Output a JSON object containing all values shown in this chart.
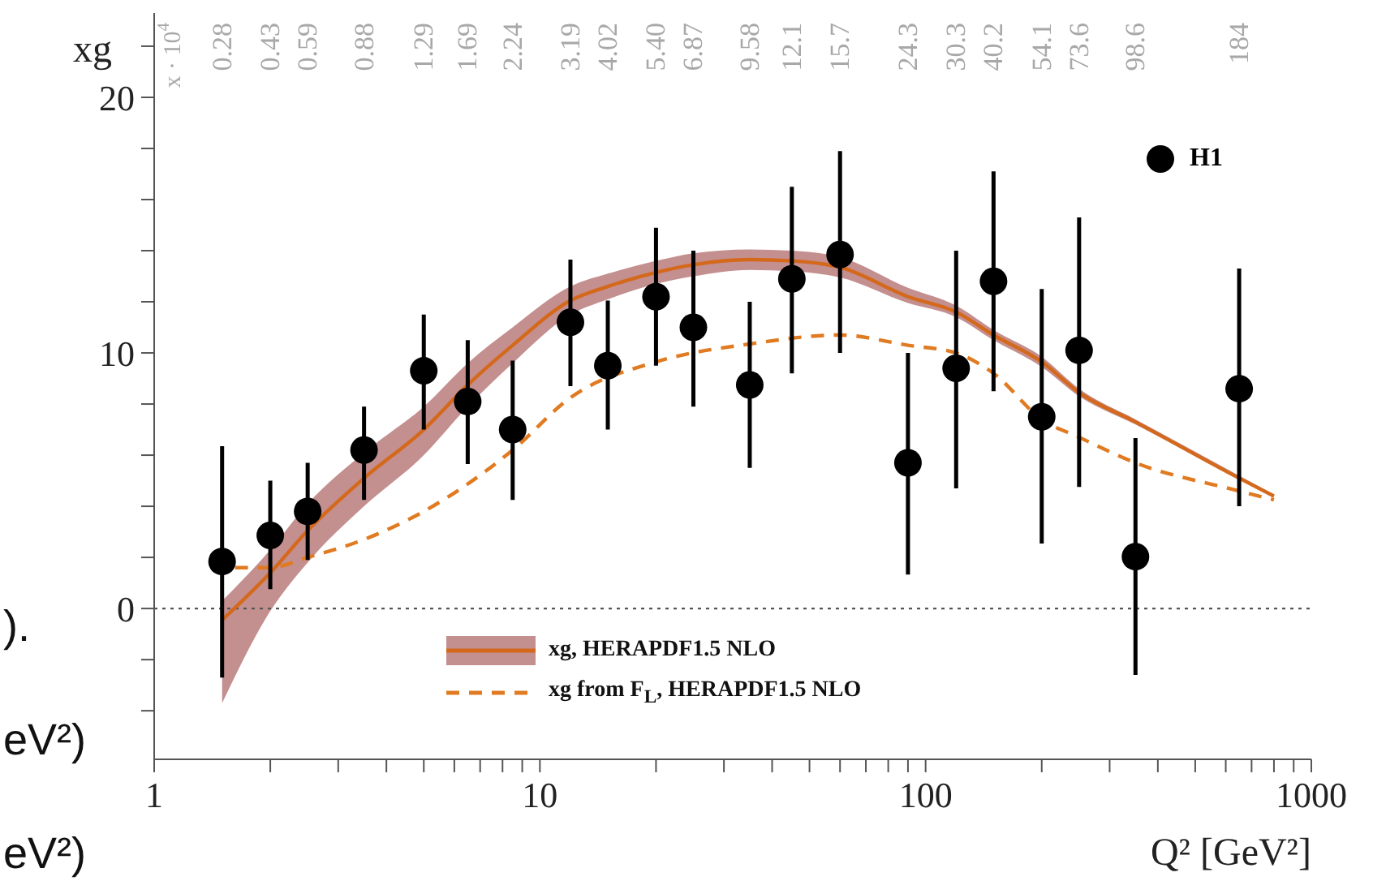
{
  "chart_data": {
    "type": "scatter",
    "ylabel": "xg",
    "xlabel": "Q² [GeV²]",
    "log": "x",
    "xlim": [
      1,
      1000
    ],
    "ylim": [
      -5.9,
      23.3
    ],
    "xticks": [
      1,
      {
        "value": 2,
        "label": null
      },
      {
        "value": 3,
        "label": null
      },
      {
        "value": 4,
        "label": null
      },
      {
        "value": 5,
        "label": null
      },
      {
        "value": 6,
        "label": null
      },
      {
        "value": 7,
        "label": null
      },
      {
        "value": 8,
        "label": null
      },
      {
        "value": 9,
        "label": null
      },
      10,
      {
        "value": 20,
        "label": null
      },
      {
        "value": 30,
        "label": null
      },
      {
        "value": 40,
        "label": null
      },
      {
        "value": 50,
        "label": null
      },
      {
        "value": 60,
        "label": null
      },
      {
        "value": 70,
        "label": null
      },
      {
        "value": 80,
        "label": null
      },
      {
        "value": 90,
        "label": null
      },
      100,
      {
        "value": 200,
        "label": null
      },
      {
        "value": 300,
        "label": null
      },
      {
        "value": 400,
        "label": null
      },
      {
        "value": 500,
        "label": null
      },
      {
        "value": 600,
        "label": null
      },
      {
        "value": 700,
        "label": null
      },
      {
        "value": 800,
        "label": null
      },
      {
        "value": 900,
        "label": null
      },
      1000
    ],
    "yticks": [
      {
        "value": -4,
        "label": null
      },
      {
        "value": -2,
        "label": null
      },
      0,
      {
        "value": 2,
        "label": null
      },
      {
        "value": 4,
        "label": null
      },
      {
        "value": 6,
        "label": null
      },
      {
        "value": 8,
        "label": null
      },
      10,
      {
        "value": 12,
        "label": null
      },
      {
        "value": 14,
        "label": null
      },
      {
        "value": 16,
        "label": null
      },
      {
        "value": 18,
        "label": null
      },
      20,
      {
        "value": 22,
        "label": null
      }
    ],
    "grid": false,
    "legend": "bottom",
    "ref_lines": [
      {
        "axis": "y",
        "value": 0,
        "color": "#555555",
        "line_style": "dotted"
      }
    ],
    "annotations": [
      ").",
      "eV²)",
      "eV²)",
      "x · 10$^{4}$",
      "0.28",
      "0.43",
      "0.59",
      "0.88",
      "1.29",
      "1.69",
      "2.24",
      "3.19",
      "4.02",
      "5.40",
      "6.87",
      "9.58",
      "12.1",
      "15.7",
      "24.3",
      "30.3",
      "40.2",
      "54.1",
      "73.6",
      "98.6",
      "184"
    ],
    "series": [
      {
        "type": "line",
        "name": "xg, HERAPDF1.5 NLO",
        "color": "#d4691c",
        "line_style": "solid",
        "x": [
          1.5,
          2,
          2.5,
          3.5,
          5,
          6.5,
          8.5,
          12,
          15,
          20,
          25,
          35,
          45,
          60,
          90,
          120,
          150,
          200,
          250,
          350,
          650,
          800
        ],
        "values": [
          -0.45,
          1.4,
          3.05,
          5.1,
          7.0,
          8.75,
          10.3,
          12.05,
          12.6,
          13.15,
          13.45,
          13.65,
          13.6,
          13.35,
          12.2,
          11.6,
          10.7,
          9.65,
          8.45,
          7.3,
          5.1,
          4.4
        ],
        "lower": [
          -3.7,
          -0.1,
          1.8,
          4.0,
          6.0,
          7.9,
          9.6,
          11.5,
          12.1,
          12.7,
          13.0,
          13.25,
          13.2,
          12.95,
          11.95,
          11.4,
          10.5,
          9.45,
          8.3,
          7.2,
          5.05,
          4.35
        ],
        "upper": [
          0.3,
          2.3,
          4.1,
          6.1,
          7.9,
          9.6,
          11.0,
          12.6,
          13.1,
          13.6,
          13.9,
          14.05,
          14.0,
          13.75,
          12.55,
          11.85,
          10.9,
          9.85,
          8.6,
          7.4,
          5.2,
          4.45
        ]
      },
      {
        "type": "line",
        "name": "xg from F$_{L}$, HERAPDF1.5 NLO",
        "color": "#e07b22",
        "line_style": "dashed",
        "x": [
          1.62,
          2,
          2.5,
          3.5,
          5,
          8.5,
          12,
          20,
          35,
          60,
          90,
          120,
          150,
          200,
          250,
          350,
          650,
          800
        ],
        "values": [
          1.6,
          1.6,
          2.0,
          2.7,
          3.8,
          6.2,
          8.25,
          9.65,
          10.35,
          10.7,
          10.3,
          10.0,
          9.2,
          7.4,
          6.7,
          5.7,
          4.6,
          4.25
        ]
      },
      {
        "type": "scatter",
        "name": "H1",
        "color": "#000000",
        "marker": "circle",
        "x": [
          1.5,
          2,
          2.5,
          3.5,
          5,
          6.5,
          8.5,
          12,
          15,
          20,
          25,
          35,
          45,
          60,
          90,
          120,
          150,
          200,
          250,
          350,
          650
        ],
        "values": [
          1.84,
          2.86,
          3.8,
          6.2,
          9.3,
          8.1,
          7.0,
          11.2,
          9.5,
          12.2,
          11.0,
          8.75,
          12.9,
          13.85,
          5.7,
          9.4,
          12.8,
          7.5,
          10.1,
          2.03,
          8.6
        ],
        "errors": [
          [
            -2.7,
            6.35
          ],
          [
            0.76,
            5.0
          ],
          [
            1.9,
            5.7
          ],
          [
            4.25,
            7.9
          ],
          [
            7.0,
            11.5
          ],
          [
            5.65,
            10.5
          ],
          [
            4.25,
            9.7
          ],
          [
            8.7,
            13.65
          ],
          [
            7.0,
            12.05
          ],
          [
            9.5,
            14.9
          ],
          [
            7.9,
            14.0
          ],
          [
            5.5,
            12.0
          ],
          [
            9.2,
            16.5
          ],
          [
            10.0,
            17.9
          ],
          [
            1.33,
            10.0
          ],
          [
            4.7,
            14.0
          ],
          [
            8.5,
            17.1
          ],
          [
            2.54,
            12.5
          ],
          [
            4.76,
            15.3
          ],
          [
            -2.6,
            6.67
          ],
          [
            4.0,
            13.3
          ]
        ]
      }
    ]
  }
}
